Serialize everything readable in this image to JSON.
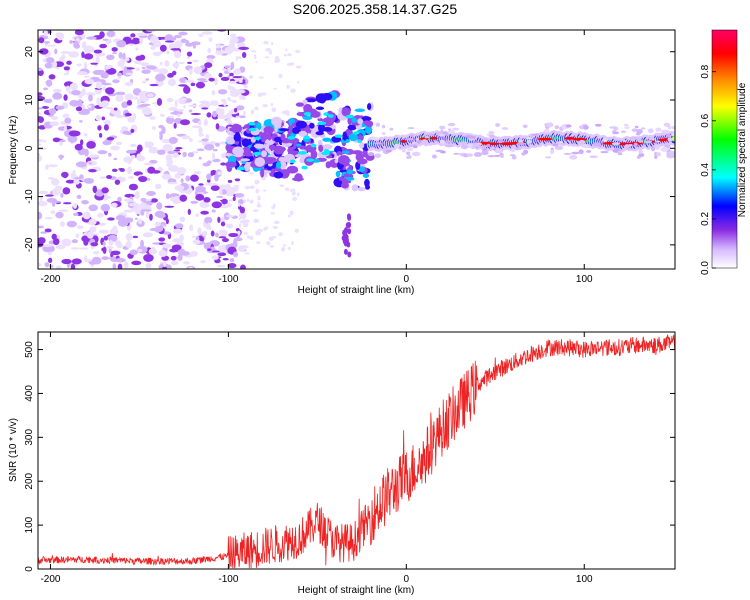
{
  "title": "S206.2025.358.14.37.G25",
  "colors": {
    "snr_line": "#ee2222",
    "axis": "#000000",
    "background": "#ffffff",
    "purple": "#7b3fe8",
    "light_purple": "#d9c8f7"
  },
  "chart_data": [
    {
      "type": "heatmap",
      "title": "",
      "xlabel": "Height of straight line (km)",
      "ylabel": "Frequency (Hz)",
      "xlim": [
        -207,
        151
      ],
      "ylim": [
        -25,
        24.5
      ],
      "xticks": [
        -200,
        -100,
        0,
        100
      ],
      "xtick_labels": [
        "-200",
        "-100",
        "0",
        "100"
      ],
      "yticks": [
        -20,
        -10,
        0,
        10,
        20
      ],
      "ytick_labels": [
        "-20",
        "-10",
        "0",
        "10",
        "20"
      ],
      "colorbar": {
        "label": "Normalized spectral amplitude",
        "range": [
          0,
          0.97
        ],
        "ticks": [
          0,
          0.2,
          0.4,
          0.6,
          0.8
        ],
        "tick_labels": [
          "0.0",
          "0.2",
          "0.4",
          "0.6",
          "0.8"
        ],
        "colors": [
          "#ffffff",
          "#d4b8ff",
          "#8a2be2",
          "#0000ff",
          "#00ffff",
          "#00ff00",
          "#ffff00",
          "#ff8000",
          "#ff0000",
          "#ff0066"
        ]
      },
      "features": [
        {
          "region": "noise field",
          "x_range": [
            -207,
            -100
          ],
          "y_range": [
            -25,
            24.5
          ],
          "amplitude": 0.1
        },
        {
          "region": "scattered spots",
          "x_range": [
            -100,
            -20
          ],
          "y_range": [
            -10,
            10
          ],
          "amplitude": 0.3
        },
        {
          "region": "narrow line",
          "x_range": [
            -20,
            151
          ],
          "y_center": 1.5,
          "amplitude": 0.85
        }
      ]
    },
    {
      "type": "line",
      "title": "",
      "xlabel": "Height of straight line (km)",
      "ylabel": "SNR (10 * v/v)",
      "xlim": [
        -207,
        151
      ],
      "ylim": [
        0,
        540
      ],
      "xticks": [
        -200,
        -100,
        0,
        100
      ],
      "xtick_labels": [
        "-200",
        "-100",
        "0",
        "100"
      ],
      "yticks": [
        0,
        100,
        200,
        300,
        400,
        500
      ],
      "ytick_labels": [
        "0",
        "100",
        "200",
        "300",
        "400",
        "500"
      ],
      "series": [
        {
          "name": "SNR",
          "color": "#ee2222",
          "x": [
            -207,
            -180,
            -150,
            -120,
            -100,
            -80,
            -60,
            -50,
            -40,
            -30,
            -20,
            -10,
            0,
            10,
            20,
            30,
            40,
            50,
            60,
            70,
            80,
            90,
            100,
            110,
            120,
            130,
            140,
            151
          ],
          "values": [
            20,
            22,
            18,
            18,
            30,
            50,
            70,
            110,
            60,
            60,
            120,
            170,
            210,
            250,
            320,
            370,
            420,
            450,
            470,
            490,
            505,
            505,
            500,
            505,
            505,
            510,
            510,
            515
          ]
        }
      ]
    }
  ]
}
